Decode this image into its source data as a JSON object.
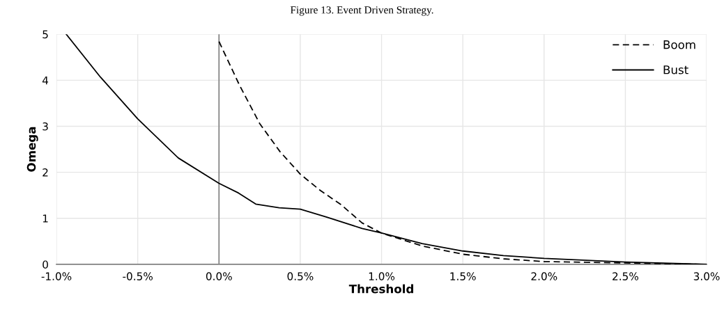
{
  "chart_data": {
    "type": "line",
    "title": "Figure 13. Event Driven Strategy.",
    "xlabel": "Threshold",
    "ylabel": "Omega",
    "series": [
      {
        "name": "Boom",
        "color": "#000000",
        "line_style": "dashed",
        "x": [
          0,
          0.125,
          0.25,
          0.375,
          0.5,
          0.625,
          0.75,
          0.88,
          1.0,
          1.25,
          1.5,
          1.75,
          2.0,
          2.5,
          3.0
        ],
        "values": [
          4.84,
          3.9,
          3.06,
          2.45,
          1.96,
          1.6,
          1.3,
          0.9,
          0.68,
          0.4,
          0.22,
          0.12,
          0.06,
          0.03,
          0
        ]
      },
      {
        "name": "Bust",
        "color": "#000000",
        "line_style": "solid",
        "x": [
          -0.94,
          -0.73,
          -0.5,
          -0.25,
          0,
          0.12,
          0.226,
          0.37,
          0.5,
          0.66,
          0.88,
          1.0,
          1.25,
          1.5,
          1.75,
          2.0,
          2.5,
          3.0
        ],
        "values": [
          5,
          4.07,
          3.16,
          2.31,
          1.76,
          1.55,
          1.31,
          1.23,
          1.2,
          1.03,
          0.78,
          0.68,
          0.45,
          0.29,
          0.19,
          0.13,
          0.05,
          0
        ]
      }
    ],
    "xlim": [
      -1.0,
      3.0
    ],
    "ylim": [
      0,
      5
    ],
    "xticks": [
      {
        "value": -1.0,
        "label": "-1.0%"
      },
      {
        "value": -0.5,
        "label": "-0.5%"
      },
      {
        "value": 0,
        "label": "0.0%"
      },
      {
        "value": 0.5,
        "label": "0.5%"
      },
      {
        "value": 1.0,
        "label": "1.0%"
      },
      {
        "value": 1.5,
        "label": "1.5%"
      },
      {
        "value": 2.0,
        "label": "2.0%"
      },
      {
        "value": 2.5,
        "label": "2.5%"
      },
      {
        "value": 3.0,
        "label": "3.0%"
      }
    ],
    "yticks": [
      0,
      1,
      2,
      3,
      4,
      5
    ],
    "ref_lines": [
      {
        "axis": "x",
        "value": 0,
        "color": "#808080"
      }
    ],
    "grid": true,
    "legend": "top right",
    "marker": "none"
  }
}
